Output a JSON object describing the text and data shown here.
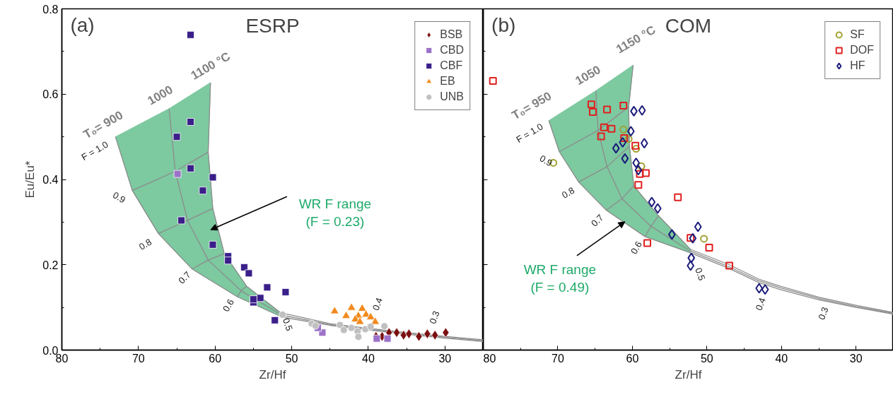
{
  "chart_data": [
    {
      "type": "scatter",
      "title": "ESRP",
      "xlabel": "Zr/Hf",
      "ylabel": "Eu/Eu*",
      "xlim": [
        80,
        25
      ],
      "ylim": [
        0,
        0.8
      ],
      "xticks": [
        80,
        70,
        60,
        50,
        40,
        30
      ],
      "yticks": [
        {
          "value": 0,
          "label": "0.0"
        },
        0.2,
        0.4,
        0.6,
        0.8
      ],
      "grid": false,
      "legend": "top right",
      "annotations": [
        "(a)",
        "T₀= 900",
        "1000",
        "1100 °C",
        "F = 1.0",
        "0.9",
        "0.8",
        "0.7",
        "0.6",
        "0.5",
        "0.4",
        "0.3",
        "WR F range\n(F = 0.23)"
      ],
      "series": [
        {
          "type": "area",
          "color": "#7dc9a0",
          "x": [
            73,
            70.8,
            67.4,
            63.0,
            57.1,
            51.2,
            51.5,
            55.9,
            58.8,
            60.3,
            60.9,
            60.6,
            66.0,
            73
          ],
          "values": [
            0.5,
            0.374,
            0.273,
            0.19,
            0.125,
            0.077,
            0.088,
            0.15,
            0.226,
            0.332,
            0.464,
            0.627,
            0.566,
            0.5
          ]
        },
        {
          "type": "line",
          "color": "#8c8c8c",
          "x": [
            73,
            70.8,
            67.4,
            63.0,
            57.1,
            51.2,
            45,
            40,
            35,
            30,
            25
          ],
          "values": [
            0.5,
            0.374,
            0.273,
            0.19,
            0.125,
            0.077,
            0.058,
            0.047,
            0.037,
            0.028,
            0.02
          ]
        },
        {
          "type": "line",
          "color": "#8c8c8c",
          "x": [
            66.0,
            65.2,
            63.6,
            60.9,
            56.6,
            51.3,
            45,
            40,
            35,
            30,
            25
          ],
          "values": [
            0.566,
            0.419,
            0.304,
            0.211,
            0.139,
            0.082,
            0.06,
            0.049,
            0.039,
            0.03,
            0.022
          ]
        },
        {
          "type": "line",
          "color": "#8c8c8c",
          "x": [
            60.6,
            60.9,
            60.3,
            58.8,
            55.9,
            51.5,
            45,
            40,
            35,
            30,
            25
          ],
          "values": [
            0.627,
            0.464,
            0.332,
            0.226,
            0.15,
            0.088,
            0.062,
            0.051,
            0.041,
            0.032,
            0.024
          ]
        },
        {
          "type": "line",
          "color": "#8c8c8c",
          "x": [
            70.8,
            65.2,
            60.9
          ],
          "values": [
            0.374,
            0.419,
            0.464
          ]
        },
        {
          "type": "line",
          "color": "#8c8c8c",
          "x": [
            67.4,
            63.6,
            60.3
          ],
          "values": [
            0.273,
            0.304,
            0.332
          ]
        },
        {
          "type": "line",
          "color": "#8c8c8c",
          "x": [
            63.0,
            60.9,
            58.8
          ],
          "values": [
            0.19,
            0.211,
            0.226
          ]
        },
        {
          "type": "line",
          "color": "#8c8c8c",
          "x": [
            57.1,
            56.6,
            55.9
          ],
          "values": [
            0.125,
            0.139,
            0.15
          ]
        },
        {
          "name": "BSB",
          "color": "#7b1010",
          "marker": "diamond",
          "x": [
            39.0,
            38.2,
            37.3,
            36.3,
            35.4,
            34.7,
            33.4,
            32.3,
            31.3,
            29.9
          ],
          "values": [
            0.032,
            0.032,
            0.041,
            0.041,
            0.035,
            0.038,
            0.032,
            0.038,
            0.035,
            0.041
          ]
        },
        {
          "name": "CBD",
          "color": "#9b72c8",
          "marker": "square",
          "x": [
            64.9,
            46.0,
            46.6,
            37.5,
            38.9
          ],
          "values": [
            0.413,
            0.041,
            0.052,
            0.027,
            0.027
          ]
        },
        {
          "name": "CBF",
          "color": "#3a1f8a",
          "marker": "square",
          "x": [
            63.2,
            63.2,
            65.0,
            63.2,
            60.3,
            61.6,
            64.4,
            60.3,
            58.3,
            58.3,
            56.2,
            55.6,
            53.2,
            54.1,
            55.0,
            55.0,
            50.8,
            52.2
          ],
          "values": [
            0.739,
            0.535,
            0.5,
            0.426,
            0.405,
            0.374,
            0.304,
            0.247,
            0.22,
            0.21,
            0.194,
            0.18,
            0.147,
            0.122,
            0.112,
            0.119,
            0.136,
            0.07
          ]
        },
        {
          "name": "EB",
          "color": "#f28a1e",
          "marker": "triangle",
          "x": [
            44.4,
            42.2,
            40.8,
            42.9,
            41.3,
            41.7,
            40.3,
            39.7,
            39.1,
            41.1
          ],
          "values": [
            0.091,
            0.099,
            0.097,
            0.08,
            0.08,
            0.072,
            0.083,
            0.077,
            0.066,
            0.066
          ]
        },
        {
          "name": "UNB",
          "color": "#c0c0c0",
          "marker": "circle",
          "x": [
            51.2,
            47.4,
            46.9,
            43.7,
            43.2,
            41.4,
            41.3,
            40.4,
            39.7,
            37.9,
            42.2
          ],
          "values": [
            0.083,
            0.062,
            0.057,
            0.059,
            0.047,
            0.044,
            0.031,
            0.049,
            0.055,
            0.056,
            0.052
          ]
        }
      ]
    },
    {
      "type": "scatter",
      "title": "COM",
      "xlabel": "Zr/Hf",
      "xlim": [
        80,
        25
      ],
      "ylim": [
        0,
        0.8
      ],
      "xticks": [
        80,
        70,
        60,
        50,
        40,
        30
      ],
      "yticks": [
        0,
        0.2,
        0.4,
        0.6,
        0.8
      ],
      "tick_labels": "x",
      "grid": false,
      "legend": "top right",
      "annotations": [
        "(b)",
        "T₀= 950",
        "1050",
        "1150 °C",
        "F = 1.0",
        "0.9",
        "0.8",
        "0.7",
        "0.6",
        "0.5",
        "0.4",
        "0.3",
        {
          "text": "WR F range\n(F = 0.49)",
          "x": 61.0,
          "y": 0.301
        }
      ],
      "series": [
        {
          "type": "area",
          "color": "#7dc9a0",
          "x": [
            71.2,
            69.8,
            67.2,
            63.5,
            58.3,
            52.2,
            52.2,
            56.5,
            59.8,
            60.4,
            60.5,
            59.9,
            64.9,
            71.2
          ],
          "values": [
            0.538,
            0.465,
            0.394,
            0.328,
            0.266,
            0.228,
            0.236,
            0.315,
            0.385,
            0.478,
            0.57,
            0.668,
            0.608,
            0.538
          ]
        },
        {
          "type": "line",
          "color": "#8c8c8c",
          "x": [
            71.2,
            69.8,
            67.2,
            63.5,
            58.3,
            52.2,
            47,
            43,
            40,
            35,
            30,
            25
          ],
          "values": [
            0.538,
            0.465,
            0.394,
            0.328,
            0.266,
            0.228,
            0.191,
            0.158,
            0.141,
            0.118,
            0.1,
            0.084
          ]
        },
        {
          "type": "line",
          "color": "#8c8c8c",
          "x": [
            64.9,
            64.6,
            63.4,
            61.4,
            57.5,
            52.2,
            47,
            43,
            40,
            35,
            30,
            25
          ],
          "values": [
            0.608,
            0.515,
            0.43,
            0.355,
            0.29,
            0.232,
            0.195,
            0.162,
            0.145,
            0.121,
            0.102,
            0.086
          ]
        },
        {
          "type": "line",
          "color": "#8c8c8c",
          "x": [
            59.9,
            60.5,
            60.4,
            59.8,
            56.5,
            52.2,
            47,
            43,
            40,
            35,
            30,
            25
          ],
          "values": [
            0.668,
            0.57,
            0.478,
            0.385,
            0.315,
            0.236,
            0.2,
            0.166,
            0.149,
            0.124,
            0.105,
            0.088
          ]
        },
        {
          "type": "line",
          "color": "#8c8c8c",
          "x": [
            69.8,
            64.6,
            60.5
          ],
          "values": [
            0.465,
            0.515,
            0.57
          ]
        },
        {
          "type": "line",
          "color": "#8c8c8c",
          "x": [
            67.2,
            63.4,
            60.4
          ],
          "values": [
            0.394,
            0.43,
            0.478
          ]
        },
        {
          "type": "line",
          "color": "#8c8c8c",
          "x": [
            63.5,
            61.4,
            59.8
          ],
          "values": [
            0.328,
            0.355,
            0.385
          ]
        },
        {
          "type": "line",
          "color": "#8c8c8c",
          "x": [
            58.3,
            57.5,
            56.5
          ],
          "values": [
            0.266,
            0.29,
            0.315
          ]
        },
        {
          "name": "SF",
          "color": "#a0a030",
          "marker": "circle",
          "x": [
            70.6,
            61.2,
            60.5,
            59.5,
            58.8,
            50.4
          ],
          "values": [
            0.439,
            0.517,
            0.495,
            0.472,
            0.431,
            0.261
          ]
        },
        {
          "name": "DOF",
          "color": "#e02020",
          "marker": "square",
          "x": [
            78.7,
            65.5,
            65.3,
            63.4,
            61.2,
            63.8,
            62.8,
            64.2,
            61.1,
            59.6,
            59.0,
            58.2,
            59.2,
            53.9,
            58.0,
            52.2,
            49.7,
            47.0
          ],
          "values": [
            0.631,
            0.576,
            0.558,
            0.564,
            0.573,
            0.522,
            0.519,
            0.501,
            0.497,
            0.479,
            0.413,
            0.415,
            0.387,
            0.358,
            0.251,
            0.263,
            0.24,
            0.198
          ]
        },
        {
          "name": "HF",
          "color": "#1a1a7a",
          "marker": "diamond",
          "x": [
            59.8,
            58.7,
            60.2,
            61.3,
            62.2,
            58.4,
            61.0,
            59.5,
            59.2,
            57.4,
            56.6,
            54.7,
            51.2,
            51.9,
            52.1,
            52.2,
            43.0,
            42.2
          ],
          "values": [
            0.56,
            0.562,
            0.513,
            0.487,
            0.473,
            0.485,
            0.449,
            0.439,
            0.422,
            0.347,
            0.332,
            0.271,
            0.289,
            0.262,
            0.216,
            0.198,
            0.145,
            0.142
          ]
        }
      ]
    }
  ]
}
